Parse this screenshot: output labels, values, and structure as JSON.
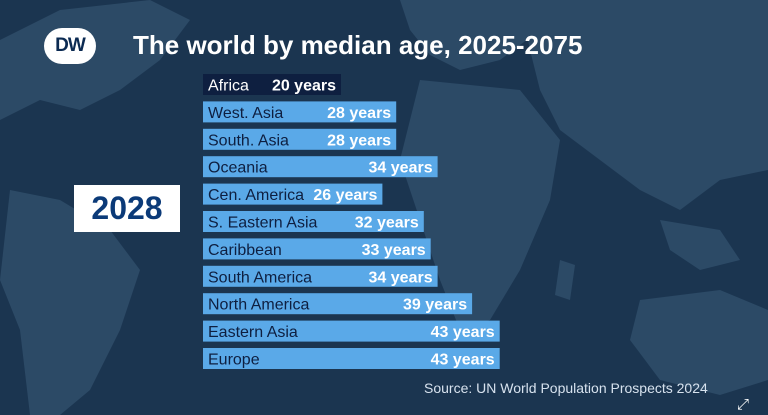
{
  "brand": {
    "logo_text": "DW"
  },
  "title": "The world by median age, 2025-2075",
  "year": "2028",
  "source": "Source: UN World Population Prospects 2024",
  "colors": {
    "background": "#1b3550",
    "land": "#2c4a66",
    "bar": "#5aa9e8",
    "bar_highlight": "#0e1f40",
    "label_dark": "#0e1f40",
    "label_light": "#ffffff"
  },
  "chart_data": {
    "type": "bar",
    "orientation": "horizontal",
    "title": "The world by median age, 2025-2075",
    "unit": "years",
    "categories": [
      "Africa",
      "West. Asia",
      "South. Asia",
      "Oceania",
      "Cen. America",
      "S. Eastern Asia",
      "Caribbean",
      "South America",
      "North America",
      "Eastern Asia",
      "Europe"
    ],
    "values": [
      20,
      28,
      28,
      34,
      26,
      32,
      33,
      34,
      39,
      43,
      43
    ],
    "value_labels": [
      "20 years",
      "28 years",
      "28 years",
      "34 years",
      "26 years",
      "32 years",
      "33 years",
      "34 years",
      "39 years",
      "43 years",
      "43 years"
    ],
    "highlight": "Africa"
  }
}
